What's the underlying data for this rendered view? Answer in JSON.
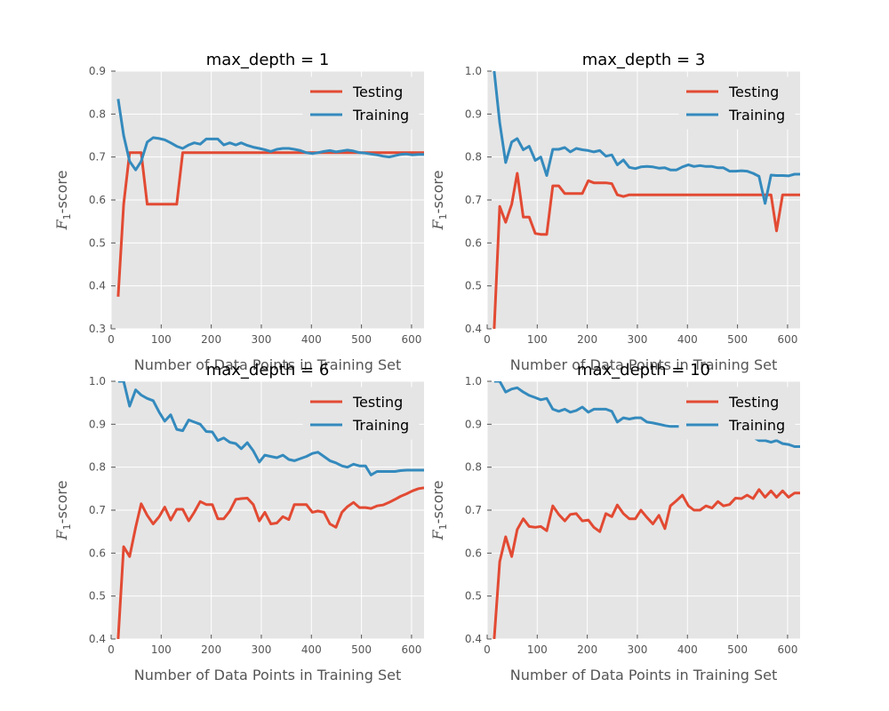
{
  "chart_data": [
    {
      "type": "line",
      "title": "max_depth = 1",
      "xlabel": "Number of Data Points in Training Set",
      "ylabel_main": "F",
      "ylabel_sub": "1",
      "ylabel_suffix": "-score",
      "xlim": [
        0,
        625
      ],
      "ylim": [
        0.3,
        0.9
      ],
      "xticks": [
        "0",
        "100",
        "200",
        "300",
        "400",
        "500",
        "600"
      ],
      "yticks": [
        "0.3",
        "0.4",
        "0.5",
        "0.6",
        "0.7",
        "0.8",
        "0.9"
      ],
      "grid": true,
      "legend": "top-right",
      "colors": {
        "Testing": "#e24a33",
        "Training": "#348abd"
      },
      "series": [
        {
          "name": "Testing",
          "x": [
            14,
            25,
            37,
            49,
            60,
            72,
            84,
            96,
            107,
            119,
            131,
            143,
            155,
            166,
            178,
            190,
            202,
            213,
            225,
            237,
            249,
            260,
            272,
            284,
            296,
            307,
            319,
            331,
            343,
            355,
            366,
            378,
            390,
            402,
            413,
            425,
            437,
            449,
            461,
            472,
            484,
            496,
            508,
            519,
            531,
            543,
            555,
            567,
            578,
            590,
            602,
            614,
            625
          ],
          "values": [
            0.375,
            0.59,
            0.71,
            0.71,
            0.71,
            0.59,
            0.59,
            0.59,
            0.59,
            0.59,
            0.59,
            0.71,
            0.71,
            0.71,
            0.71,
            0.71,
            0.71,
            0.71,
            0.71,
            0.71,
            0.71,
            0.71,
            0.71,
            0.71,
            0.71,
            0.71,
            0.71,
            0.71,
            0.71,
            0.71,
            0.71,
            0.71,
            0.71,
            0.71,
            0.71,
            0.71,
            0.71,
            0.71,
            0.71,
            0.71,
            0.71,
            0.71,
            0.71,
            0.71,
            0.71,
            0.71,
            0.71,
            0.71,
            0.71,
            0.71,
            0.71,
            0.71,
            0.71
          ]
        },
        {
          "name": "Training",
          "x": [
            14,
            25,
            37,
            49,
            60,
            72,
            84,
            96,
            107,
            119,
            131,
            143,
            155,
            166,
            178,
            190,
            202,
            213,
            225,
            237,
            249,
            260,
            272,
            284,
            296,
            307,
            319,
            331,
            343,
            355,
            366,
            378,
            390,
            402,
            413,
            425,
            437,
            449,
            461,
            472,
            484,
            496,
            508,
            519,
            531,
            543,
            555,
            567,
            578,
            590,
            602,
            614,
            625
          ],
          "values": [
            0.835,
            0.75,
            0.69,
            0.67,
            0.69,
            0.735,
            0.745,
            0.743,
            0.74,
            0.733,
            0.725,
            0.72,
            0.728,
            0.733,
            0.73,
            0.742,
            0.742,
            0.742,
            0.728,
            0.733,
            0.728,
            0.733,
            0.727,
            0.723,
            0.72,
            0.717,
            0.713,
            0.718,
            0.72,
            0.72,
            0.718,
            0.715,
            0.71,
            0.708,
            0.71,
            0.713,
            0.715,
            0.712,
            0.714,
            0.716,
            0.714,
            0.71,
            0.709,
            0.707,
            0.705,
            0.702,
            0.7,
            0.703,
            0.706,
            0.707,
            0.705,
            0.706,
            0.706
          ]
        }
      ]
    },
    {
      "type": "line",
      "title": "max_depth = 3",
      "xlabel": "Number of Data Points in Training Set",
      "ylabel_main": "F",
      "ylabel_sub": "1",
      "ylabel_suffix": "-score",
      "xlim": [
        0,
        625
      ],
      "ylim": [
        0.4,
        1.0
      ],
      "xticks": [
        "0",
        "100",
        "200",
        "300",
        "400",
        "500",
        "600"
      ],
      "yticks": [
        "0.4",
        "0.5",
        "0.6",
        "0.7",
        "0.8",
        "0.9",
        "1.0"
      ],
      "grid": true,
      "legend": "top-right",
      "colors": {
        "Testing": "#e24a33",
        "Training": "#348abd"
      },
      "series": [
        {
          "name": "Testing",
          "x": [
            14,
            25,
            37,
            49,
            60,
            72,
            84,
            96,
            107,
            119,
            131,
            143,
            155,
            166,
            178,
            190,
            202,
            213,
            225,
            237,
            249,
            260,
            272,
            284,
            296,
            307,
            319,
            331,
            343,
            355,
            366,
            378,
            390,
            402,
            413,
            425,
            437,
            449,
            461,
            472,
            484,
            496,
            508,
            519,
            531,
            543,
            555,
            567,
            578,
            590,
            602,
            614,
            625
          ],
          "values": [
            0.4,
            0.685,
            0.648,
            0.69,
            0.762,
            0.66,
            0.66,
            0.622,
            0.62,
            0.62,
            0.733,
            0.733,
            0.715,
            0.715,
            0.715,
            0.715,
            0.745,
            0.74,
            0.74,
            0.74,
            0.738,
            0.712,
            0.708,
            0.712,
            0.712,
            0.712,
            0.712,
            0.712,
            0.712,
            0.712,
            0.712,
            0.712,
            0.712,
            0.712,
            0.712,
            0.712,
            0.712,
            0.712,
            0.712,
            0.712,
            0.712,
            0.712,
            0.712,
            0.712,
            0.712,
            0.712,
            0.712,
            0.712,
            0.628,
            0.712,
            0.712,
            0.712,
            0.712
          ]
        },
        {
          "name": "Training",
          "x": [
            14,
            25,
            37,
            49,
            60,
            72,
            84,
            96,
            107,
            119,
            131,
            143,
            155,
            166,
            178,
            190,
            202,
            213,
            225,
            237,
            249,
            260,
            272,
            284,
            296,
            307,
            319,
            331,
            343,
            355,
            366,
            378,
            390,
            402,
            413,
            425,
            437,
            449,
            461,
            472,
            484,
            496,
            508,
            519,
            531,
            543,
            555,
            567,
            578,
            590,
            602,
            614,
            625
          ],
          "values": [
            1.0,
            0.88,
            0.787,
            0.835,
            0.843,
            0.817,
            0.825,
            0.792,
            0.8,
            0.757,
            0.818,
            0.818,
            0.822,
            0.812,
            0.82,
            0.817,
            0.815,
            0.812,
            0.815,
            0.802,
            0.805,
            0.782,
            0.793,
            0.776,
            0.773,
            0.777,
            0.778,
            0.777,
            0.774,
            0.775,
            0.77,
            0.77,
            0.777,
            0.782,
            0.778,
            0.78,
            0.778,
            0.778,
            0.775,
            0.775,
            0.767,
            0.767,
            0.768,
            0.767,
            0.762,
            0.755,
            0.692,
            0.758,
            0.757,
            0.757,
            0.756,
            0.76,
            0.76
          ]
        }
      ]
    },
    {
      "type": "line",
      "title": "max_depth = 6",
      "xlabel": "Number of Data Points in Training Set",
      "ylabel_main": "F",
      "ylabel_sub": "1",
      "ylabel_suffix": "-score",
      "xlim": [
        0,
        625
      ],
      "ylim": [
        0.4,
        1.0
      ],
      "xticks": [
        "0",
        "100",
        "200",
        "300",
        "400",
        "500",
        "600"
      ],
      "yticks": [
        "0.4",
        "0.5",
        "0.6",
        "0.7",
        "0.8",
        "0.9",
        "1.0"
      ],
      "grid": true,
      "legend": "top-right",
      "colors": {
        "Testing": "#e24a33",
        "Training": "#348abd"
      },
      "series": [
        {
          "name": "Testing",
          "x": [
            14,
            25,
            37,
            49,
            60,
            72,
            84,
            96,
            107,
            119,
            131,
            143,
            155,
            166,
            178,
            190,
            202,
            213,
            225,
            237,
            249,
            260,
            272,
            284,
            296,
            307,
            319,
            331,
            343,
            355,
            366,
            378,
            390,
            402,
            413,
            425,
            437,
            449,
            461,
            472,
            484,
            496,
            508,
            519,
            531,
            543,
            555,
            567,
            578,
            590,
            602,
            614,
            625
          ],
          "values": [
            0.4,
            0.615,
            0.592,
            0.66,
            0.715,
            0.688,
            0.668,
            0.685,
            0.707,
            0.677,
            0.702,
            0.702,
            0.675,
            0.695,
            0.72,
            0.713,
            0.713,
            0.68,
            0.68,
            0.698,
            0.725,
            0.727,
            0.728,
            0.713,
            0.675,
            0.695,
            0.668,
            0.67,
            0.685,
            0.678,
            0.713,
            0.713,
            0.713,
            0.695,
            0.698,
            0.695,
            0.668,
            0.66,
            0.695,
            0.708,
            0.718,
            0.706,
            0.706,
            0.704,
            0.71,
            0.712,
            0.718,
            0.725,
            0.732,
            0.738,
            0.745,
            0.75,
            0.752
          ]
        },
        {
          "name": "Training",
          "x": [
            14,
            25,
            37,
            49,
            60,
            72,
            84,
            96,
            107,
            119,
            131,
            143,
            155,
            166,
            178,
            190,
            202,
            213,
            225,
            237,
            249,
            260,
            272,
            284,
            296,
            307,
            319,
            331,
            343,
            355,
            366,
            378,
            390,
            402,
            413,
            425,
            437,
            449,
            461,
            472,
            484,
            496,
            508,
            519,
            531,
            543,
            555,
            567,
            578,
            590,
            602,
            614,
            625
          ],
          "values": [
            1.0,
            1.0,
            0.942,
            0.98,
            0.968,
            0.96,
            0.955,
            0.928,
            0.907,
            0.922,
            0.888,
            0.885,
            0.91,
            0.905,
            0.9,
            0.883,
            0.882,
            0.862,
            0.868,
            0.858,
            0.855,
            0.843,
            0.857,
            0.838,
            0.812,
            0.828,
            0.825,
            0.822,
            0.828,
            0.818,
            0.815,
            0.82,
            0.825,
            0.832,
            0.835,
            0.825,
            0.815,
            0.81,
            0.803,
            0.8,
            0.807,
            0.803,
            0.803,
            0.782,
            0.79,
            0.79,
            0.79,
            0.79,
            0.792,
            0.793,
            0.793,
            0.793,
            0.793
          ]
        }
      ]
    },
    {
      "type": "line",
      "title": "max_depth = 10",
      "xlabel": "Number of Data Points in Training Set",
      "ylabel_main": "F",
      "ylabel_sub": "1",
      "ylabel_suffix": "-score",
      "xlim": [
        0,
        625
      ],
      "ylim": [
        0.4,
        1.0
      ],
      "xticks": [
        "0",
        "100",
        "200",
        "300",
        "400",
        "500",
        "600"
      ],
      "yticks": [
        "0.4",
        "0.5",
        "0.6",
        "0.7",
        "0.8",
        "0.9",
        "1.0"
      ],
      "grid": true,
      "legend": "top-right",
      "colors": {
        "Testing": "#e24a33",
        "Training": "#348abd"
      },
      "series": [
        {
          "name": "Testing",
          "x": [
            14,
            25,
            37,
            49,
            60,
            72,
            84,
            96,
            107,
            119,
            131,
            143,
            155,
            166,
            178,
            190,
            202,
            213,
            225,
            237,
            249,
            260,
            272,
            284,
            296,
            307,
            319,
            331,
            343,
            355,
            366,
            378,
            390,
            402,
            413,
            425,
            437,
            449,
            461,
            472,
            484,
            496,
            508,
            519,
            531,
            543,
            555,
            567,
            578,
            590,
            602,
            614,
            625
          ],
          "values": [
            0.4,
            0.58,
            0.638,
            0.592,
            0.655,
            0.68,
            0.662,
            0.66,
            0.662,
            0.652,
            0.71,
            0.69,
            0.675,
            0.69,
            0.692,
            0.675,
            0.677,
            0.66,
            0.65,
            0.692,
            0.685,
            0.712,
            0.692,
            0.68,
            0.68,
            0.7,
            0.683,
            0.668,
            0.688,
            0.657,
            0.71,
            0.722,
            0.735,
            0.71,
            0.7,
            0.7,
            0.71,
            0.705,
            0.72,
            0.71,
            0.713,
            0.728,
            0.727,
            0.735,
            0.727,
            0.748,
            0.73,
            0.745,
            0.73,
            0.745,
            0.73,
            0.74,
            0.74
          ]
        },
        {
          "name": "Training",
          "x": [
            14,
            25,
            37,
            49,
            60,
            72,
            84,
            96,
            107,
            119,
            131,
            143,
            155,
            166,
            178,
            190,
            202,
            213,
            225,
            237,
            249,
            260,
            272,
            284,
            296,
            307,
            319,
            331,
            343,
            355,
            366,
            378,
            390,
            402,
            413,
            425,
            437,
            449,
            461,
            472,
            484,
            496,
            508,
            519,
            531,
            543,
            555,
            567,
            578,
            590,
            602,
            614,
            625
          ],
          "values": [
            1.0,
            1.0,
            0.975,
            0.982,
            0.985,
            0.975,
            0.967,
            0.962,
            0.957,
            0.96,
            0.935,
            0.93,
            0.935,
            0.928,
            0.932,
            0.94,
            0.928,
            0.935,
            0.935,
            0.935,
            0.93,
            0.905,
            0.915,
            0.912,
            0.915,
            0.915,
            0.905,
            0.903,
            0.9,
            0.897,
            0.895,
            0.895,
            0.895,
            0.895,
            0.895,
            0.9,
            0.895,
            0.895,
            0.89,
            0.893,
            0.89,
            0.888,
            0.88,
            0.877,
            0.87,
            0.862,
            0.862,
            0.858,
            0.862,
            0.855,
            0.853,
            0.848,
            0.848
          ]
        }
      ]
    }
  ]
}
